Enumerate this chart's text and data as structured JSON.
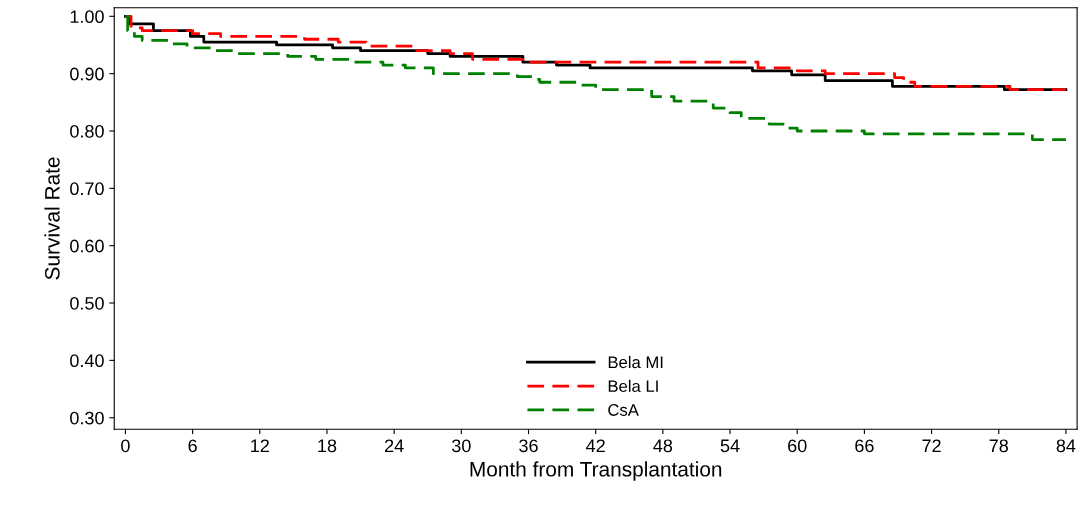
{
  "chart_data": {
    "type": "step",
    "xlabel": "Month from Transplantation",
    "ylabel": "Survival Rate",
    "legend": "bottom",
    "grid": false,
    "xlim": [
      -1,
      85
    ],
    "xticks": [
      0,
      6,
      12,
      18,
      24,
      30,
      36,
      42,
      48,
      54,
      60,
      66,
      72,
      78,
      84
    ],
    "ylim": [
      0.28,
      1.015
    ],
    "yticks": [
      {
        "value": 0.3,
        "label": "0.30"
      },
      {
        "value": 0.4,
        "label": "0.40"
      },
      {
        "value": 0.5,
        "label": "0.50"
      },
      {
        "value": 0.6,
        "label": "0.60"
      },
      {
        "value": 0.7,
        "label": "0.70"
      },
      {
        "value": 0.8,
        "label": "0.80"
      },
      {
        "value": 0.9,
        "label": "0.90"
      },
      {
        "value": 1.0,
        "label": "1.00"
      }
    ],
    "series": [
      {
        "name": "Bela MI",
        "color": "#000000",
        "line_style": "solid",
        "x": [
          0,
          0.3,
          2.5,
          5.8,
          7,
          13.5,
          18.5,
          21,
          27,
          29,
          35.5,
          38.5,
          41.5,
          56,
          59.5,
          62.5,
          68.5,
          78.5,
          84
        ],
        "values": [
          1.0,
          0.987,
          0.975,
          0.965,
          0.955,
          0.95,
          0.945,
          0.94,
          0.935,
          0.93,
          0.92,
          0.915,
          0.91,
          0.905,
          0.898,
          0.888,
          0.878,
          0.872,
          0.872
        ]
      },
      {
        "name": "Bela LI",
        "color": "#ff0000",
        "line_style": "dashed",
        "x": [
          0,
          0.5,
          1.5,
          6,
          8.5,
          16,
          19,
          21.5,
          26,
          29,
          31,
          36,
          56.5,
          60,
          62.5,
          68.7,
          69.5,
          70.5,
          79,
          84
        ],
        "values": [
          1.0,
          0.98,
          0.975,
          0.97,
          0.965,
          0.96,
          0.955,
          0.948,
          0.94,
          0.935,
          0.925,
          0.92,
          0.91,
          0.905,
          0.9,
          0.893,
          0.885,
          0.878,
          0.872,
          0.872
        ]
      },
      {
        "name": "CsA",
        "color": "#008000",
        "line_style": "dashed",
        "x": [
          0,
          0.2,
          0.8,
          1.5,
          4,
          5.5,
          8,
          10,
          14.5,
          17,
          20,
          23,
          25,
          27.5,
          35,
          36.5,
          37,
          40.5,
          42,
          47,
          49,
          52.5,
          54,
          55,
          57.5,
          59,
          60,
          66,
          81,
          84
        ],
        "values": [
          1.0,
          0.975,
          0.965,
          0.958,
          0.952,
          0.945,
          0.94,
          0.935,
          0.93,
          0.925,
          0.92,
          0.915,
          0.91,
          0.9,
          0.895,
          0.89,
          0.885,
          0.88,
          0.872,
          0.86,
          0.852,
          0.84,
          0.832,
          0.822,
          0.812,
          0.805,
          0.8,
          0.795,
          0.785,
          0.785
        ]
      }
    ]
  }
}
